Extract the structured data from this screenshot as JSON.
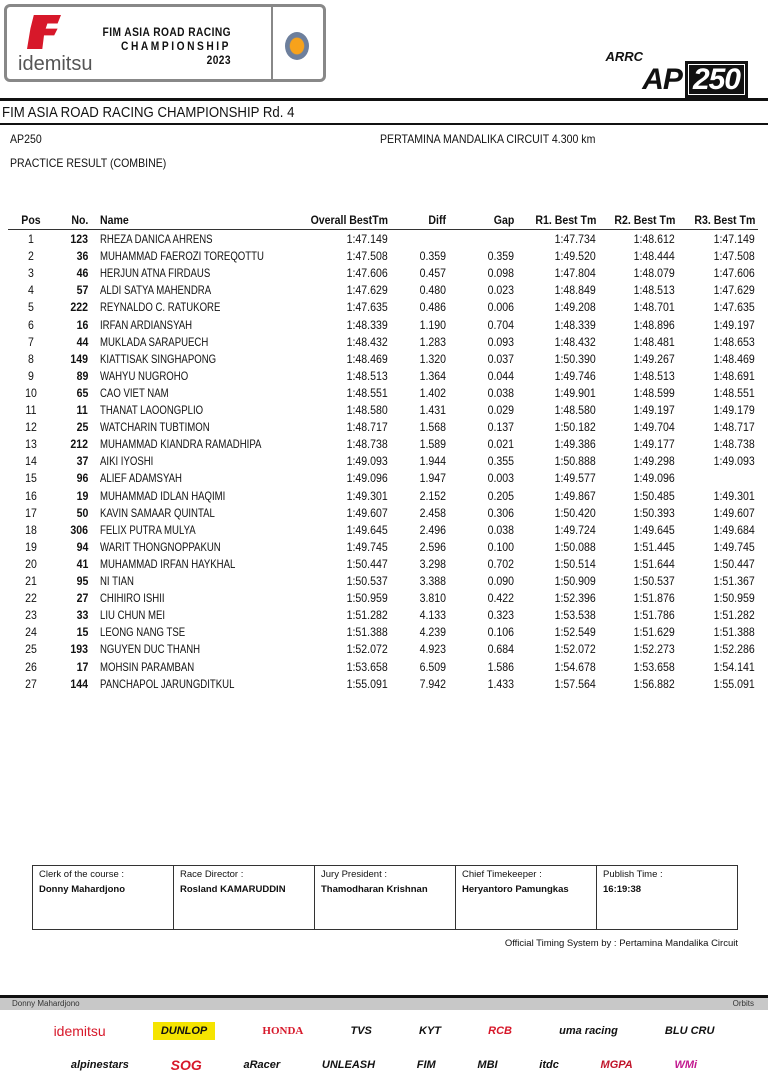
{
  "header": {
    "brand": "idemitsu",
    "championship_logo": [
      "FIM ASIA ROAD RACING",
      "CHAMPIONSHIP",
      "2023"
    ],
    "class_logo": {
      "top": "ARRC",
      "ap": "AP",
      "num": "250"
    },
    "title": "FIM ASIA ROAD RACING CHAMPIONSHIP Rd. 4",
    "class": "AP250",
    "circuit": "PERTAMINA MANDALIKA CIRCUIT 4.300 km",
    "session": "PRACTICE RESULT (COMBINE)"
  },
  "table": {
    "columns": [
      "Pos",
      "No.",
      "Name",
      "Overall BestTm",
      "Diff",
      "Gap",
      "R1. Best Tm",
      "R2. Best Tm",
      "R3. Best Tm"
    ],
    "rows": [
      [
        "1",
        "123",
        "RHEZA DANICA AHRENS",
        "1:47.149",
        "",
        "",
        "1:47.734",
        "1:48.612",
        "1:47.149"
      ],
      [
        "2",
        "36",
        "MUHAMMAD FAEROZI TOREQOTTU",
        "1:47.508",
        "0.359",
        "0.359",
        "1:49.520",
        "1:48.444",
        "1:47.508"
      ],
      [
        "3",
        "46",
        "HERJUN ATNA FIRDAUS",
        "1:47.606",
        "0.457",
        "0.098",
        "1:47.804",
        "1:48.079",
        "1:47.606"
      ],
      [
        "4",
        "57",
        "ALDI SATYA MAHENDRA",
        "1:47.629",
        "0.480",
        "0.023",
        "1:48.849",
        "1:48.513",
        "1:47.629"
      ],
      [
        "5",
        "222",
        "REYNALDO C. RATUKORE",
        "1:47.635",
        "0.486",
        "0.006",
        "1:49.208",
        "1:48.701",
        "1:47.635"
      ],
      [
        "6",
        "16",
        "IRFAN ARDIANSYAH",
        "1:48.339",
        "1.190",
        "0.704",
        "1:48.339",
        "1:48.896",
        "1:49.197"
      ],
      [
        "7",
        "44",
        "MUKLADA SARAPUECH",
        "1:48.432",
        "1.283",
        "0.093",
        "1:48.432",
        "1:48.481",
        "1:48.653"
      ],
      [
        "8",
        "149",
        "KIATTISAK SINGHAPONG",
        "1:48.469",
        "1.320",
        "0.037",
        "1:50.390",
        "1:49.267",
        "1:48.469"
      ],
      [
        "9",
        "89",
        "WAHYU NUGROHO",
        "1:48.513",
        "1.364",
        "0.044",
        "1:49.746",
        "1:48.513",
        "1:48.691"
      ],
      [
        "10",
        "65",
        "CAO VIET NAM",
        "1:48.551",
        "1.402",
        "0.038",
        "1:49.901",
        "1:48.599",
        "1:48.551"
      ],
      [
        "11",
        "11",
        "THANAT LAOONGPLIO",
        "1:48.580",
        "1.431",
        "0.029",
        "1:48.580",
        "1:49.197",
        "1:49.179"
      ],
      [
        "12",
        "25",
        "WATCHARIN TUBTIMON",
        "1:48.717",
        "1.568",
        "0.137",
        "1:50.182",
        "1:49.704",
        "1:48.717"
      ],
      [
        "13",
        "212",
        "MUHAMMAD KIANDRA RAMADHIPA",
        "1:48.738",
        "1.589",
        "0.021",
        "1:49.386",
        "1:49.177",
        "1:48.738"
      ],
      [
        "14",
        "37",
        "AIKI IYOSHI",
        "1:49.093",
        "1.944",
        "0.355",
        "1:50.888",
        "1:49.298",
        "1:49.093"
      ],
      [
        "15",
        "96",
        "ALIEF ADAMSYAH",
        "1:49.096",
        "1.947",
        "0.003",
        "1:49.577",
        "1:49.096",
        ""
      ],
      [
        "16",
        "19",
        "MUHAMMAD IDLAN HAQIMI",
        "1:49.301",
        "2.152",
        "0.205",
        "1:49.867",
        "1:50.485",
        "1:49.301"
      ],
      [
        "17",
        "50",
        "KAVIN SAMAAR QUINTAL",
        "1:49.607",
        "2.458",
        "0.306",
        "1:50.420",
        "1:50.393",
        "1:49.607"
      ],
      [
        "18",
        "306",
        "FELIX PUTRA MULYA",
        "1:49.645",
        "2.496",
        "0.038",
        "1:49.724",
        "1:49.645",
        "1:49.684"
      ],
      [
        "19",
        "94",
        "WARIT THONGNOPPAKUN",
        "1:49.745",
        "2.596",
        "0.100",
        "1:50.088",
        "1:51.445",
        "1:49.745"
      ],
      [
        "20",
        "41",
        "MUHAMMAD IRFAN HAYKHAL",
        "1:50.447",
        "3.298",
        "0.702",
        "1:50.514",
        "1:51.644",
        "1:50.447"
      ],
      [
        "21",
        "95",
        "NI TIAN",
        "1:50.537",
        "3.388",
        "0.090",
        "1:50.909",
        "1:50.537",
        "1:51.367"
      ],
      [
        "22",
        "27",
        "CHIHIRO ISHII",
        "1:50.959",
        "3.810",
        "0.422",
        "1:52.396",
        "1:51.876",
        "1:50.959"
      ],
      [
        "23",
        "33",
        "LIU CHUN MEI",
        "1:51.282",
        "4.133",
        "0.323",
        "1:53.538",
        "1:51.786",
        "1:51.282"
      ],
      [
        "24",
        "15",
        "LEONG NANG TSE",
        "1:51.388",
        "4.239",
        "0.106",
        "1:52.549",
        "1:51.629",
        "1:51.388"
      ],
      [
        "25",
        "193",
        "NGUYEN DUC THANH",
        "1:52.072",
        "4.923",
        "0.684",
        "1:52.072",
        "1:52.273",
        "1:52.286"
      ],
      [
        "26",
        "17",
        "MOHSIN PARAMBAN",
        "1:53.658",
        "6.509",
        "1.586",
        "1:54.678",
        "1:53.658",
        "1:54.141"
      ],
      [
        "27",
        "144",
        "PANCHAPOL JARUNGDITKUL",
        "1:55.091",
        "7.942",
        "1.433",
        "1:57.564",
        "1:56.882",
        "1:55.091"
      ]
    ]
  },
  "signatures": [
    {
      "label": "Clerk of the course :",
      "value": "Donny Mahardjono"
    },
    {
      "label": "Race Director :",
      "value": "Rosland KAMARUDDIN"
    },
    {
      "label": "Jury President :",
      "value": "Thamodharan Krishnan"
    },
    {
      "label": "Chief Timekeeper :",
      "value": "Heryantoro Pamungkas"
    },
    {
      "label": "Publish Time :",
      "value": "16:19:38"
    }
  ],
  "official_timing": "Official Timing System by : Pertamina Mandalika Circuit",
  "footer_bar": {
    "left": "Donny Mahardjono",
    "right": "Orbits"
  },
  "sponsors_row1": [
    "idemitsu",
    "DUNLOP",
    "HONDA",
    "TVS",
    "KYT",
    "RCB",
    "uma racing",
    "BLU CRU"
  ],
  "sponsors_row2": [
    "alpinestars",
    "SOG",
    "aRacer",
    "UNLEASH",
    "FIM",
    "MBI",
    "itdc",
    "MGPA",
    "WMi"
  ],
  "colors": {
    "brand_red": "#d7182a",
    "dunlop_yellow": "#f5e400"
  }
}
